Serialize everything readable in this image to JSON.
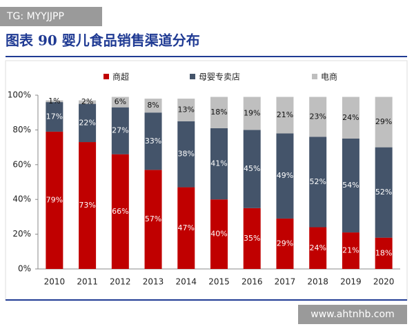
{
  "chart_data": {
    "type": "stacked-bar",
    "title": "图表 90   婴儿食品销售渠道分布",
    "annotations": [
      "TG: MYYJJPP",
      "www.ahtnhb.com"
    ],
    "categories": [
      "2010",
      "2011",
      "2012",
      "2013",
      "2014",
      "2015",
      "2016",
      "2017",
      "2018",
      "2019",
      "2020"
    ],
    "series": [
      {
        "name": "商超",
        "color": "#c00000",
        "values": [
          79,
          73,
          66,
          57,
          47,
          40,
          35,
          29,
          24,
          21,
          18
        ],
        "value_labels": [
          "79%",
          "73%",
          "66%",
          "57%",
          "47%",
          "40%",
          "35%",
          "29%",
          "24%",
          "21%",
          "18%"
        ]
      },
      {
        "name": "母婴专卖店",
        "color": "#44546a",
        "values": [
          17,
          22,
          27,
          33,
          38,
          41,
          45,
          49,
          52,
          54,
          52
        ],
        "value_labels": [
          "17%",
          "22%",
          "27%",
          "33%",
          "38%",
          "41%",
          "45%",
          "49%",
          "52%",
          "54%",
          "52%"
        ]
      },
      {
        "name": "电商",
        "color": "#bfbfbf",
        "values": [
          1,
          2,
          6,
          8,
          13,
          18,
          19,
          21,
          23,
          24,
          29
        ],
        "value_labels": [
          "1%",
          "2%",
          "6%",
          "8%",
          "13%",
          "18%",
          "19%",
          "21%",
          "23%",
          "24%",
          "29%"
        ]
      }
    ],
    "ylim": [
      0,
      100
    ],
    "yticks": [
      {
        "value": 0,
        "label": "0%"
      },
      {
        "value": 20,
        "label": "20%"
      },
      {
        "value": 40,
        "label": "40%"
      },
      {
        "value": 60,
        "label": "60%"
      },
      {
        "value": 80,
        "label": "80%"
      },
      {
        "value": 100,
        "label": "100%"
      }
    ],
    "legend": "top"
  }
}
